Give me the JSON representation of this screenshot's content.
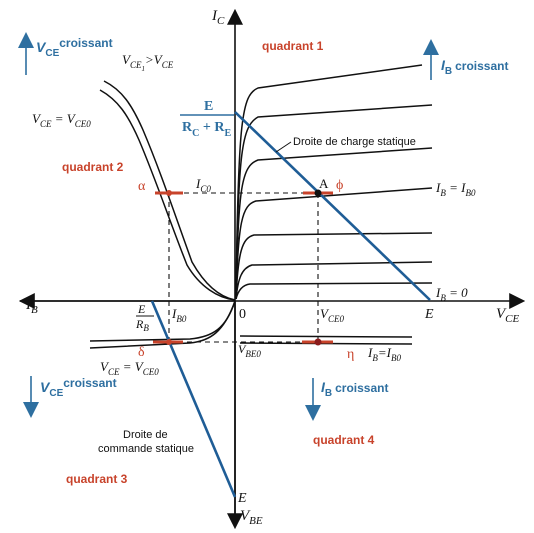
{
  "axes": {
    "ic": {
      "main": "I",
      "sub": "C"
    },
    "vce": {
      "main": "V",
      "sub": "CE"
    },
    "ib": {
      "main": "I",
      "sub": "B"
    },
    "vbe": {
      "main": "V",
      "sub": "BE"
    },
    "origin": "0"
  },
  "quadrants": {
    "q1": "quadrant 1",
    "q2": "quadrant 2",
    "q3": "quadrant 3",
    "q4": "quadrant 4"
  },
  "arrows": {
    "vce_up": {
      "main": "V",
      "sub": "CE",
      "text": "croissant"
    },
    "ib_up": {
      "main": "I",
      "sub": "B",
      "text": "croissant"
    },
    "vce_down": {
      "main": "V",
      "sub": "CE",
      "text": "croissant"
    },
    "ib_down": {
      "main": "I",
      "sub": "B",
      "text": "croissant"
    }
  },
  "labels": {
    "vce1_gt": {
      "main1": "V",
      "sub1": "CE",
      "subsub": "1",
      "rest": ">V",
      "sub2": "CE"
    },
    "vce_eq_vce0_top": {
      "main1": "V",
      "sub1": "CE",
      "eq": " = V",
      "sub2": "CE0"
    },
    "ib_eq_ib0_top": {
      "main1": "I",
      "sub1": "B",
      "eq": " = I",
      "sub2": "B0"
    },
    "ib_eq_0": {
      "main1": "I",
      "sub1": "B",
      "eq": " = 0"
    },
    "ic0": {
      "main": "I",
      "sub": "C0"
    },
    "vce0": {
      "main": "V",
      "sub": "CE0"
    },
    "ib0": {
      "main": "I",
      "sub": "B0"
    },
    "vbe0": {
      "main": "V",
      "sub": "BE0"
    },
    "e_vce": "E",
    "e_vbe": "E",
    "point_a": "A",
    "load_line": "Droite de charge statique",
    "command_line1": "Droite de",
    "command_line2": "commande statique",
    "vce_eq_vce0_bottom": {
      "main1": "V",
      "sub1": "CE",
      "eq": " = V",
      "sub2": "CE0"
    },
    "ib_eq_ib0_bottom": {
      "main1": "I",
      "sub1": "B",
      "eq": "=I",
      "sub2": "B0"
    }
  },
  "fractions": {
    "load": {
      "num": "E",
      "den_main1": "R",
      "den_sub1": "C",
      "den_plus": " + R",
      "den_sub2": "E"
    },
    "command": {
      "num": "E",
      "den_main": "R",
      "den_sub": "B"
    }
  },
  "greek": {
    "alpha": "α",
    "phi": "ϕ",
    "delta": "δ",
    "eta": "η"
  },
  "colors": {
    "accent_red": "#c8432b",
    "accent_blue": "#2e6fa0",
    "load_line": "#1f5d96"
  }
}
